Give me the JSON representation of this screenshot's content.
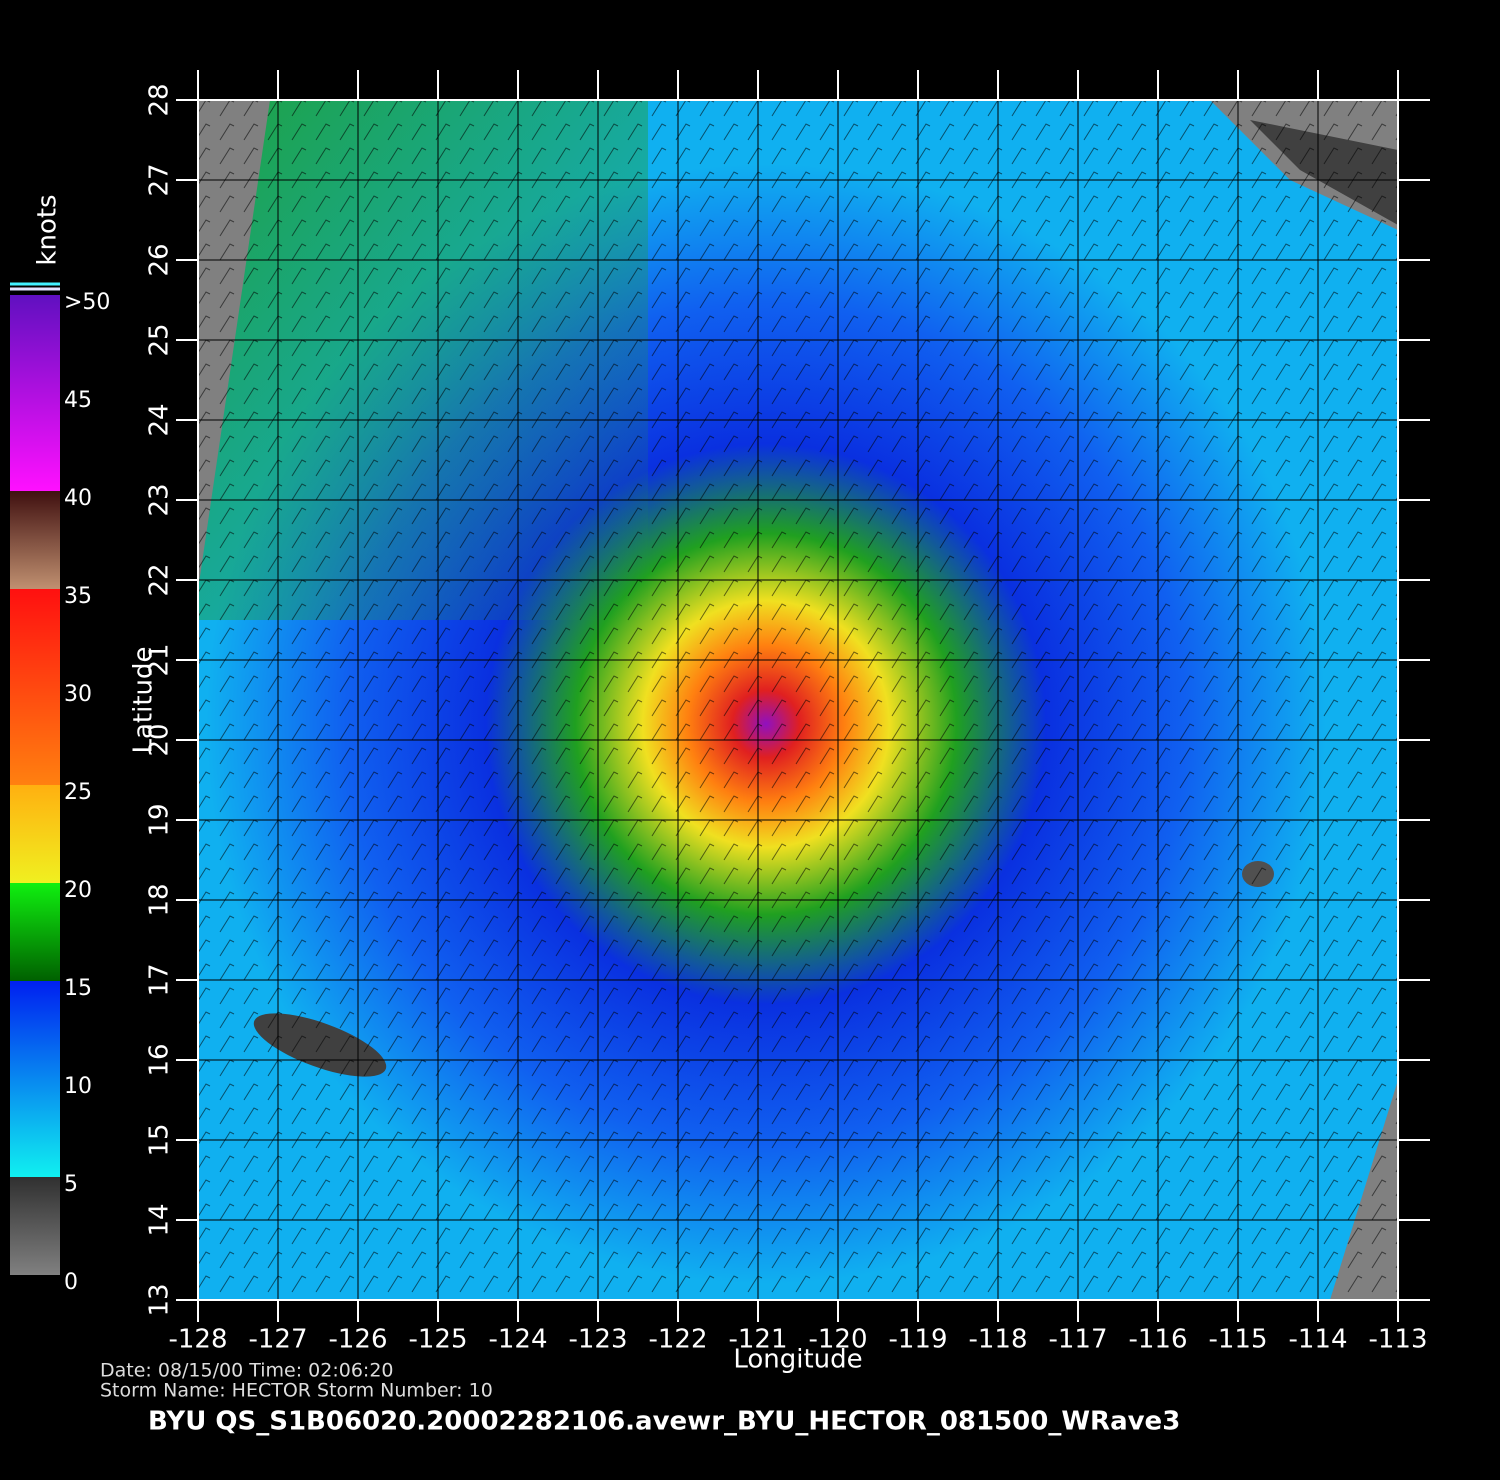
{
  "map": {
    "xlabel": "Longitude",
    "ylabel": "Latitude",
    "xlim": [
      -128,
      -113
    ],
    "ylim": [
      13,
      28
    ],
    "xticks": [
      -128,
      -127,
      -126,
      -125,
      -124,
      -123,
      -122,
      -121,
      -120,
      -119,
      -118,
      -117,
      -116,
      -115,
      -114,
      -113
    ],
    "yticks": [
      13,
      14,
      15,
      16,
      17,
      18,
      19,
      20,
      21,
      22,
      23,
      24,
      25,
      26,
      27,
      28
    ]
  },
  "colorbar": {
    "unit": "knots",
    "lim": [
      0,
      50
    ],
    "ticks": [
      0,
      5,
      10,
      15,
      20,
      25,
      30,
      35,
      40,
      45,
      {
        "value": 50,
        "label": ">50"
      }
    ]
  },
  "footer": {
    "date_time": "Date: 08/15/00   Time: 02:06:20",
    "storm_info": "Storm  Name: HECTOR   Storm  Number: 10",
    "file_name": "BYU  QS_S1B06020.20002282106.avewr_BYU_HECTOR_081500_WRave3"
  }
}
